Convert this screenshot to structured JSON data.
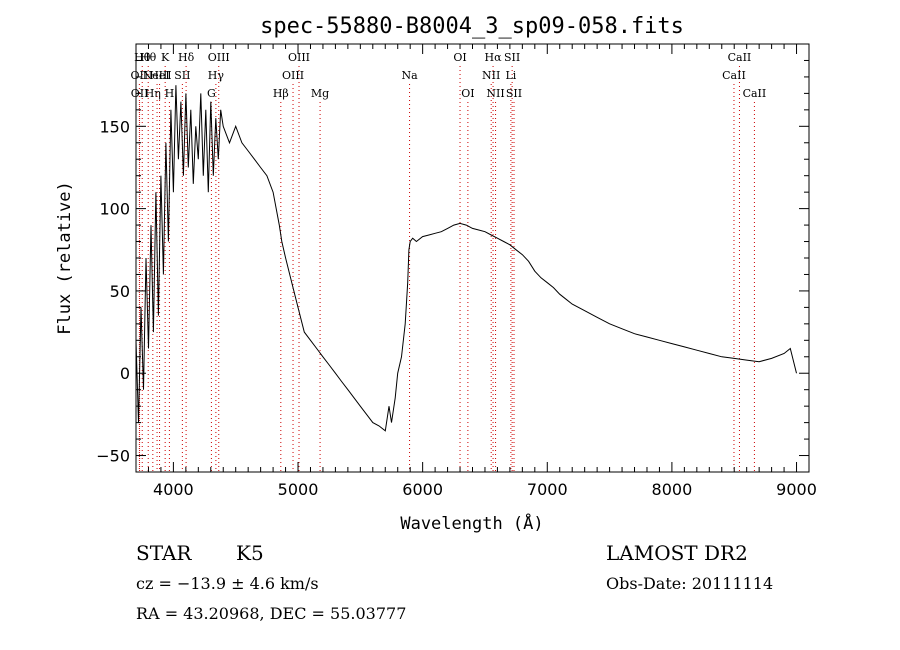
{
  "chart_data": {
    "type": "line",
    "title": "spec-55880-B8004_3_sp09-058.fits",
    "xlabel": "Wavelength (Å)",
    "ylabel": "Flux (relative)",
    "xlim": [
      3700,
      9100
    ],
    "ylim": [
      -60,
      200
    ],
    "xticks": [
      4000,
      5000,
      6000,
      7000,
      8000,
      9000
    ],
    "yticks": [
      -50,
      0,
      50,
      100,
      150
    ],
    "grid": false,
    "series_color": "#000000",
    "line_marker_color": "#cc0000",
    "series": [
      {
        "x": [
          3700,
          3720,
          3740,
          3760,
          3780,
          3800,
          3820,
          3840,
          3860,
          3880,
          3900,
          3920,
          3940,
          3960,
          3980,
          4000,
          4020,
          4040,
          4060,
          4080,
          4100,
          4120,
          4140,
          4160,
          4180,
          4200,
          4220,
          4240,
          4260,
          4280,
          4300,
          4320,
          4340,
          4360,
          4380,
          4400,
          4450,
          4500,
          4550,
          4600,
          4650,
          4700,
          4750,
          4800,
          4850,
          4870,
          4900,
          4950,
          5000,
          5050,
          5100,
          5150,
          5200,
          5250,
          5300,
          5350,
          5400,
          5450,
          5500,
          5550,
          5600,
          5650,
          5700,
          5730,
          5750,
          5780,
          5800,
          5830,
          5860,
          5880,
          5890,
          5900,
          5920,
          5950,
          6000,
          6050,
          6100,
          6150,
          6200,
          6250,
          6300,
          6350,
          6400,
          6450,
          6500,
          6550,
          6600,
          6650,
          6700,
          6750,
          6800,
          6850,
          6900,
          6950,
          7000,
          7050,
          7100,
          7150,
          7200,
          7300,
          7400,
          7500,
          7600,
          7700,
          7800,
          7900,
          8000,
          8100,
          8200,
          8300,
          8400,
          8500,
          8600,
          8700,
          8800,
          8900,
          8950,
          9000
        ],
        "y": [
          20,
          -30,
          40,
          -10,
          70,
          15,
          90,
          25,
          110,
          35,
          120,
          60,
          140,
          80,
          160,
          110,
          175,
          130,
          165,
          120,
          170,
          125,
          160,
          115,
          150,
          130,
          170,
          120,
          160,
          110,
          165,
          120,
          155,
          130,
          160,
          150,
          140,
          150,
          140,
          135,
          130,
          125,
          120,
          110,
          90,
          80,
          70,
          55,
          40,
          25,
          20,
          15,
          10,
          5,
          0,
          -5,
          -10,
          -15,
          -20,
          -25,
          -30,
          -32,
          -35,
          -20,
          -30,
          -15,
          0,
          10,
          30,
          55,
          75,
          80,
          82,
          80,
          83,
          84,
          85,
          86,
          88,
          90,
          91,
          90,
          88,
          87,
          86,
          84,
          82,
          80,
          78,
          75,
          72,
          68,
          62,
          58,
          55,
          52,
          48,
          45,
          42,
          38,
          34,
          30,
          27,
          24,
          22,
          20,
          18,
          16,
          14,
          12,
          10,
          9,
          8,
          7,
          9,
          12,
          15,
          0
        ]
      }
    ],
    "lines": [
      {
        "wavelength": 3727,
        "label": "OII",
        "row": 2
      },
      {
        "wavelength": 3729,
        "label": "OII",
        "row": 3
      },
      {
        "wavelength": 3750,
        "label": "Hθ",
        "row": 1
      },
      {
        "wavelength": 3798,
        "label": "Hθ",
        "row": 1
      },
      {
        "wavelength": 3835,
        "label": "Hη",
        "row": 3
      },
      {
        "wavelength": 3869,
        "label": "NeIII",
        "row": 2
      },
      {
        "wavelength": 3889,
        "label": "HeI",
        "row": 2
      },
      {
        "wavelength": 3934,
        "label": "K",
        "row": 1
      },
      {
        "wavelength": 3968,
        "label": "H",
        "row": 3
      },
      {
        "wavelength": 4072,
        "label": "SII",
        "row": 2
      },
      {
        "wavelength": 4102,
        "label": "Hδ",
        "row": 1
      },
      {
        "wavelength": 4305,
        "label": "G",
        "row": 3
      },
      {
        "wavelength": 4341,
        "label": "Hγ",
        "row": 2
      },
      {
        "wavelength": 4364,
        "label": "OIII",
        "row": 1
      },
      {
        "wavelength": 4862,
        "label": "Hβ",
        "row": 3
      },
      {
        "wavelength": 4960,
        "label": "OIII",
        "row": 2
      },
      {
        "wavelength": 5008,
        "label": "OIII",
        "row": 1
      },
      {
        "wavelength": 5177,
        "label": "Mg",
        "row": 3
      },
      {
        "wavelength": 5895,
        "label": "Na",
        "row": 2
      },
      {
        "wavelength": 6300,
        "label": "OI",
        "row": 1
      },
      {
        "wavelength": 6363,
        "label": "OI",
        "row": 3
      },
      {
        "wavelength": 6550,
        "label": "NII",
        "row": 2
      },
      {
        "wavelength": 6565,
        "label": "Hα",
        "row": 1
      },
      {
        "wavelength": 6585,
        "label": "NII",
        "row": 3
      },
      {
        "wavelength": 6708,
        "label": "Li",
        "row": 2
      },
      {
        "wavelength": 6718,
        "label": "SII",
        "row": 1
      },
      {
        "wavelength": 6733,
        "label": "SII",
        "row": 3
      },
      {
        "wavelength": 8498,
        "label": "CaII",
        "row": 2
      },
      {
        "wavelength": 8542,
        "label": "CaII",
        "row": 1
      },
      {
        "wavelength": 8662,
        "label": "CaII",
        "row": 3
      }
    ]
  },
  "info": {
    "class_label": "STAR",
    "subclass": "K5",
    "survey": "LAMOST DR2",
    "cz": "cz = −13.9 ± 4.6 km/s",
    "obs_date": "Obs-Date: 20111114",
    "coords": "RA =  43.20968, DEC =  55.03777"
  }
}
